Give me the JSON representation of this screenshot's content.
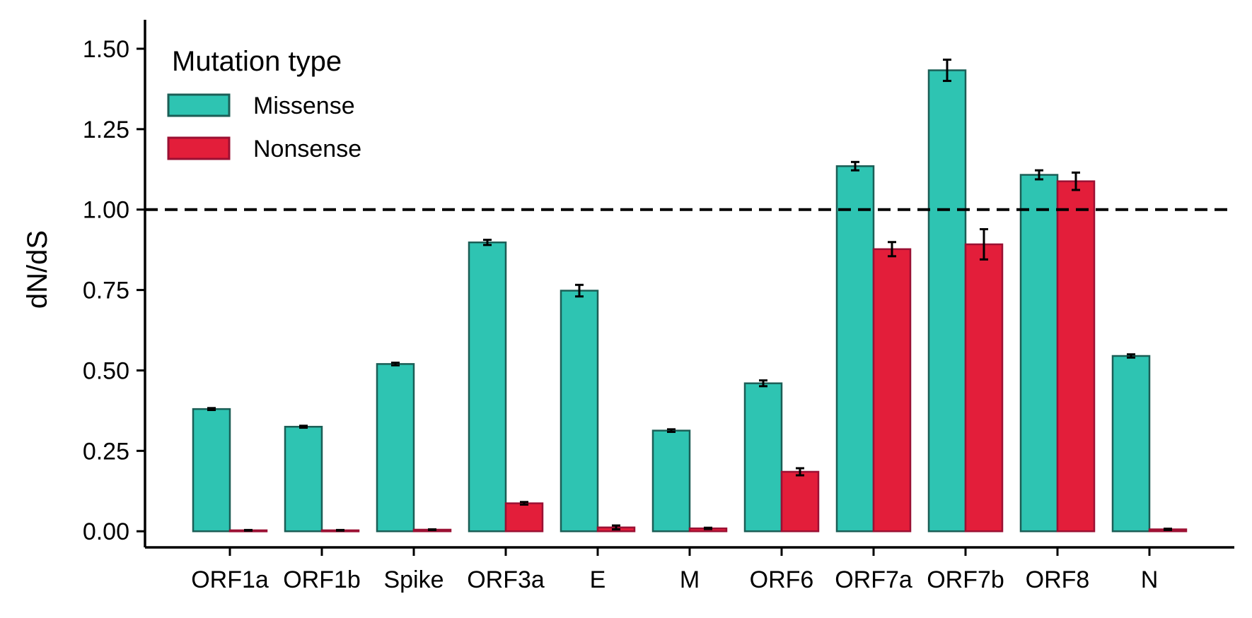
{
  "chart_data": {
    "type": "bar",
    "ylabel": "dN/dS",
    "xlabel": "",
    "ylim": [
      -0.05,
      1.59
    ],
    "yticks": [
      "0.00",
      "0.25",
      "0.50",
      "0.75",
      "1.00",
      "1.25",
      "1.50"
    ],
    "categories": [
      "ORF1a",
      "ORF1b",
      "Spike",
      "ORF3a",
      "E",
      "M",
      "ORF6",
      "ORF7a",
      "ORF7b",
      "ORF8",
      "N"
    ],
    "reference_line": {
      "value": 1.0,
      "style": "dashed"
    },
    "legend": {
      "title": "Mutation type",
      "position": "top-left"
    },
    "series": [
      {
        "name": "Missense",
        "color": "#2ec4b2",
        "edge_color": "#1b5e56",
        "values": [
          0.38,
          0.325,
          0.52,
          0.898,
          0.748,
          0.313,
          0.46,
          1.135,
          1.433,
          1.108,
          0.545
        ],
        "errors": [
          0.003,
          0.003,
          0.004,
          0.008,
          0.018,
          0.004,
          0.009,
          0.013,
          0.033,
          0.014,
          0.005
        ]
      },
      {
        "name": "Nonsense",
        "color": "#e31e3a",
        "edge_color": "#9b1033",
        "values": [
          0.003,
          0.003,
          0.005,
          0.087,
          0.012,
          0.009,
          0.185,
          0.877,
          0.892,
          1.088,
          0.006
        ],
        "errors": [
          0.001,
          0.001,
          0.001,
          0.004,
          0.006,
          0.002,
          0.011,
          0.022,
          0.047,
          0.027,
          0.002
        ]
      }
    ]
  }
}
